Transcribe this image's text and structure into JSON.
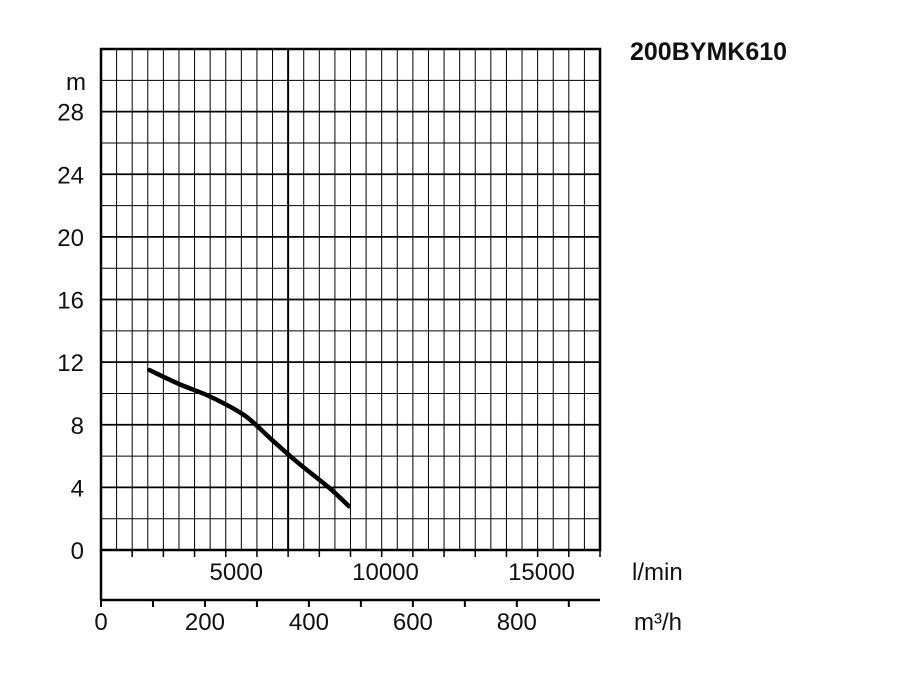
{
  "chart_data": {
    "type": "line",
    "title": "200BYMK610",
    "y_unit": "m",
    "x_unit_primary": "l/min",
    "x_unit_secondary": "m³/h",
    "ylim": [
      0,
      32
    ],
    "x_primary_lim": [
      0,
      16000
    ],
    "x_secondary_lim": [
      0,
      960
    ],
    "y_ticks": [
      "0",
      "4",
      "8",
      "12",
      "16",
      "20",
      "24",
      "28"
    ],
    "x_primary_ticks": [
      "5000",
      "10000",
      "15000"
    ],
    "x_secondary_ticks": [
      "0",
      "200",
      "400",
      "600",
      "800"
    ],
    "grid": true,
    "series": [
      {
        "x": [
          1550,
          2500,
          3500,
          4600,
          5500,
          6300,
          7300,
          7950
        ],
        "y": [
          11.5,
          10.6,
          9.8,
          8.6,
          7.0,
          5.6,
          4.0,
          2.8
        ]
      }
    ]
  }
}
